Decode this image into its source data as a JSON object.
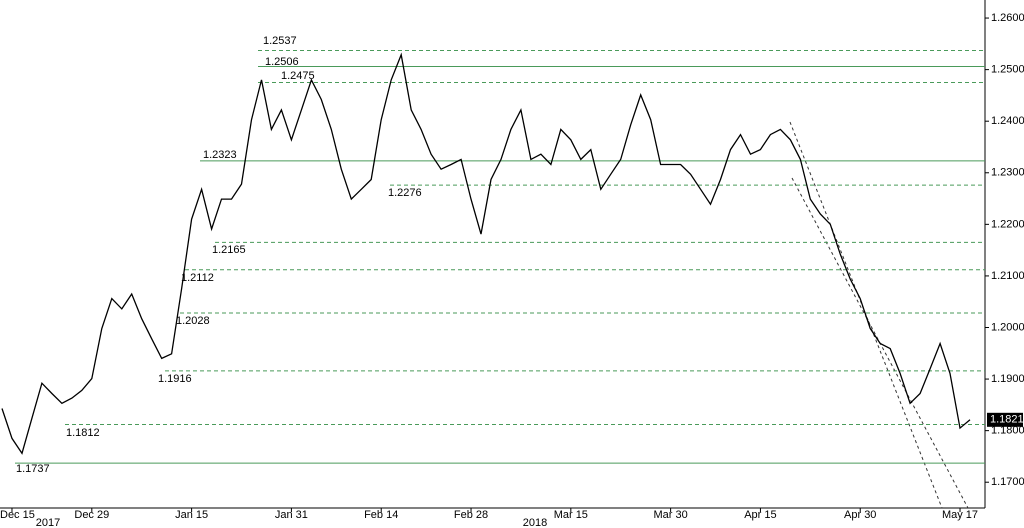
{
  "chart_data": {
    "type": "line",
    "categories": [
      null,
      "Dec 15",
      null,
      null,
      null,
      null,
      null,
      null,
      null,
      "Dec 29",
      null,
      null,
      null,
      null,
      null,
      null,
      null,
      null,
      null,
      "Jan 15",
      null,
      null,
      null,
      null,
      null,
      null,
      null,
      null,
      null,
      "Jan 31",
      null,
      null,
      null,
      null,
      null,
      null,
      null,
      null,
      "Feb 14",
      null,
      null,
      null,
      null,
      null,
      null,
      null,
      null,
      "Feb 28",
      null,
      null,
      null,
      null,
      null,
      null,
      null,
      null,
      null,
      "Mar 15",
      null,
      null,
      null,
      null,
      null,
      null,
      null,
      null,
      null,
      "Mar 30",
      null,
      null,
      null,
      null,
      null,
      null,
      null,
      null,
      "Apr 15",
      null,
      null,
      null,
      null,
      null,
      null,
      null,
      null,
      null,
      "Apr 30",
      null,
      null,
      null,
      null,
      null,
      null,
      null,
      null,
      null,
      "May 17",
      null
    ],
    "x_years": [
      "2017",
      "2018"
    ],
    "series": [
      {
        "color": "#000000",
        "values": [
          1.1843,
          1.1785,
          1.1756,
          1.1824,
          1.1892,
          1.1872,
          1.1853,
          1.1863,
          1.1878,
          1.1901,
          1.1998,
          1.2056,
          1.2036,
          1.2065,
          1.2017,
          1.1978,
          1.194,
          1.1949,
          1.2075,
          1.221,
          1.2268,
          1.2191,
          1.2249,
          1.2249,
          1.2278,
          1.2403,
          1.248,
          1.2384,
          1.2422,
          1.2364,
          1.2422,
          1.248,
          1.2442,
          1.2384,
          1.2307,
          1.2249,
          1.2268,
          1.2287,
          1.2403,
          1.248,
          1.2529,
          1.2422,
          1.2384,
          1.2336,
          1.2307,
          1.2316,
          1.2326,
          1.2249,
          1.2181,
          1.2287,
          1.2326,
          1.2384,
          1.2422,
          1.2326,
          1.2336,
          1.2316,
          1.2384,
          1.2364,
          1.2326,
          1.2345,
          1.2268,
          1.2297,
          1.2326,
          1.2393,
          1.2451,
          1.2403,
          1.2316,
          1.2316,
          1.2316,
          1.2297,
          1.2268,
          1.2239,
          1.2287,
          1.2345,
          1.2374,
          1.2336,
          1.2345,
          1.2374,
          1.2384,
          1.2364,
          1.2326,
          1.2249,
          1.222,
          1.22,
          1.2142,
          1.2094,
          1.2056,
          1.1998,
          1.1969,
          1.1959,
          1.1911,
          1.1853,
          1.1872,
          1.192,
          1.1969,
          1.1911,
          1.1805,
          1.1821
        ]
      }
    ],
    "last_price": 1.1821,
    "levels": [
      {
        "value": 1.2537,
        "style": "dashed"
      },
      {
        "value": 1.2506,
        "style": "solid"
      },
      {
        "value": 1.2475,
        "style": "dashed"
      },
      {
        "value": 1.2323,
        "style": "solid"
      },
      {
        "value": 1.2276,
        "style": "dashed"
      },
      {
        "value": 1.2165,
        "style": "dashed"
      },
      {
        "value": 1.2112,
        "style": "dashed"
      },
      {
        "value": 1.2028,
        "style": "dashed"
      },
      {
        "value": 1.1916,
        "style": "dashed"
      },
      {
        "value": 1.1812,
        "style": "dashed"
      },
      {
        "value": 1.1737,
        "style": "solid"
      }
    ],
    "level_color": "#4a9a5a",
    "ylim": [
      1.165,
      1.2635
    ],
    "yticks": [
      {
        "value": 1.17,
        "label": "1.1700"
      },
      {
        "value": 1.18,
        "label": "1.1800"
      },
      {
        "value": 1.19,
        "label": "1.1900"
      },
      {
        "value": 1.2,
        "label": "1.2000"
      },
      {
        "value": 1.21,
        "label": "1.2100"
      },
      {
        "value": 1.22,
        "label": "1.2200"
      },
      {
        "value": 1.23,
        "label": "1.2300"
      },
      {
        "value": 1.24,
        "label": "1.2400"
      },
      {
        "value": 1.25,
        "label": "1.2500"
      },
      {
        "value": 1.26,
        "label": "1.2600"
      }
    ]
  }
}
